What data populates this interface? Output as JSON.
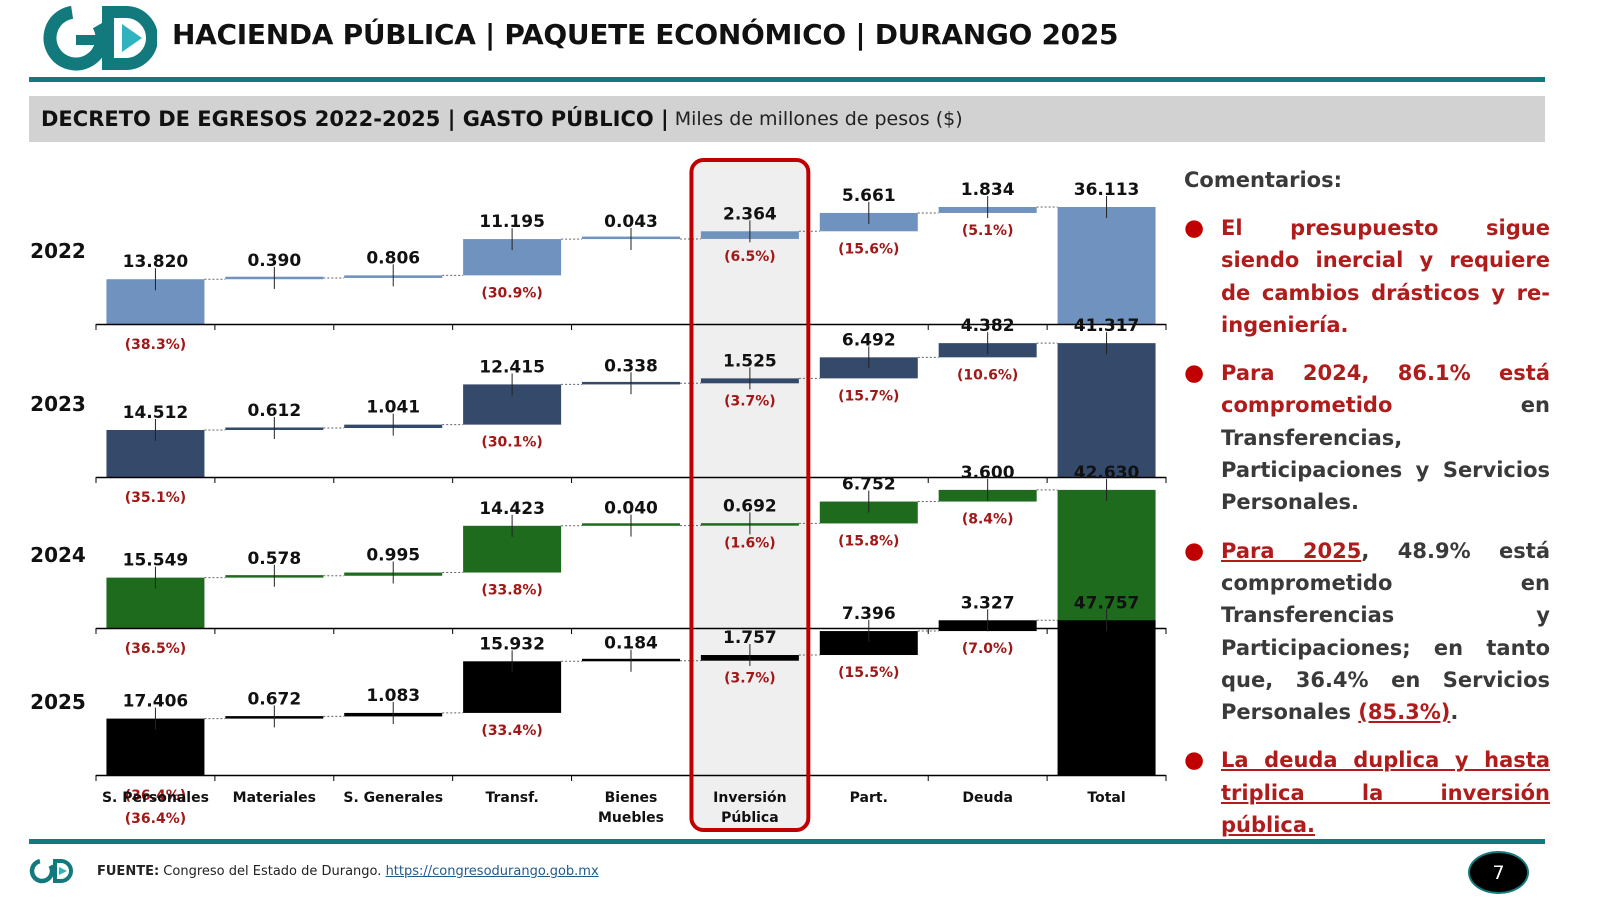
{
  "header": {
    "logo_text": "GD",
    "title": "HACIENDA PÚBLICA | PAQUETE ECONÓMICO | DURANGO 2025"
  },
  "subtitle": {
    "bold": "DECRETO DE EGRESOS 2022-2025 | GASTO PÚBLICO |",
    "unit": "Miles de millones de pesos ($)"
  },
  "colors": {
    "teal": "#127a7c",
    "highlight_border": "#c00000",
    "percent_text": "#a01818"
  },
  "chart_data": {
    "type": "bar",
    "variant": "waterfall",
    "unit": "Miles de millones de pesos ($)",
    "categories": [
      "S. Personales",
      "Materiales",
      "S. Generales",
      "Transf.",
      "Bienes Muebles",
      "Inversión Pública",
      "Part.",
      "Deuda",
      "Total"
    ],
    "category_note": {
      "S. Personales": "(36.4%)"
    },
    "highlighted_category": "Inversión Pública",
    "series": [
      {
        "name": "2022",
        "color": "#7092be",
        "values": [
          13.82,
          0.39,
          0.806,
          11.195,
          0.043,
          2.364,
          5.661,
          1.834,
          36.113
        ],
        "labels": [
          "13.820",
          "0.390",
          "0.806",
          "11.195",
          "0.043",
          "2.364",
          "5.661",
          "1.834",
          "36.113"
        ],
        "percents": [
          "(38.3%)",
          "",
          "",
          "(30.9%)",
          "",
          "(6.5%)",
          "(15.6%)",
          "(5.1%)",
          ""
        ]
      },
      {
        "name": "2023",
        "color": "#35496b",
        "values": [
          14.512,
          0.612,
          1.041,
          12.415,
          0.338,
          1.525,
          6.492,
          4.382,
          41.317
        ],
        "labels": [
          "14.512",
          "0.612",
          "1.041",
          "12.415",
          "0.338",
          "1.525",
          "6.492",
          "4.382",
          "41.317"
        ],
        "percents": [
          "(35.1%)",
          "",
          "",
          "(30.1%)",
          "",
          "(3.7%)",
          "(15.7%)",
          "(10.6%)",
          ""
        ]
      },
      {
        "name": "2024",
        "color": "#1e6b1e",
        "values": [
          15.549,
          0.578,
          0.995,
          14.423,
          0.04,
          0.692,
          6.752,
          3.6,
          42.63
        ],
        "labels": [
          "15.549",
          "0.578",
          "0.995",
          "14.423",
          "0.040",
          "0.692",
          "6.752",
          "3.600",
          "42.630"
        ],
        "percents": [
          "(36.5%)",
          "",
          "",
          "(33.8%)",
          "",
          "(1.6%)",
          "(15.8%)",
          "(8.4%)",
          ""
        ]
      },
      {
        "name": "2025",
        "color": "#000000",
        "values": [
          17.406,
          0.672,
          1.083,
          15.932,
          0.184,
          1.757,
          7.396,
          3.327,
          47.757
        ],
        "labels": [
          "17.406",
          "0.672",
          "1.083",
          "15.932",
          "0.184",
          "1.757",
          "7.396",
          "3.327",
          "47.757"
        ],
        "percents": [
          "(36.4%)",
          "",
          "",
          "(33.4%)",
          "",
          "(3.7%)",
          "(15.5%)",
          "(7.0%)",
          ""
        ]
      }
    ]
  },
  "comments": {
    "title": "Comentarios:",
    "c1": "El presupuesto sigue siendo inercial y requiere de cambios drásticos y re-ingeniería.",
    "c2_a": "Para 2024, 86.1% está comprometido",
    "c2_b": "en Transferencias, Participaciones y Servicios Personales.",
    "c3_a": "Para 2025",
    "c3_b": ", 48.9% está comprometido en Transferencias y Participaciones; en tanto que, 36.4% en Servicios Personales ",
    "c3_c": "(85.3%)",
    "c3_d": ".",
    "c4": "La deuda duplica y hasta triplica la inversión pública."
  },
  "footer": {
    "source_label": "FUENTE:",
    "source_text": "Congreso del Estado de Durango.",
    "source_url": "https://congresodurango.gob.mx",
    "page_number": "7"
  }
}
